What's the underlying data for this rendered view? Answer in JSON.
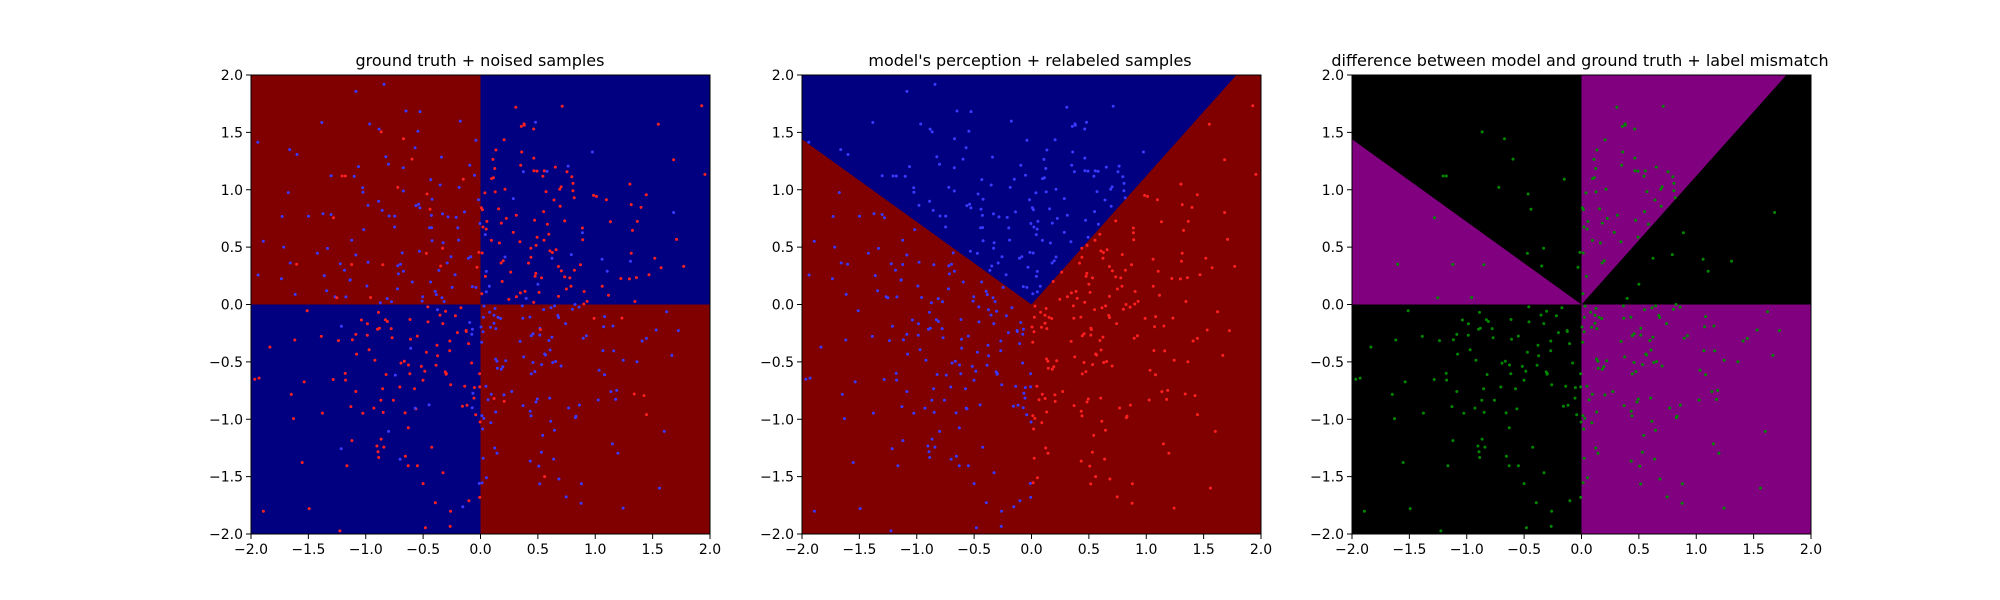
{
  "figure": {
    "background": "#ffffff"
  },
  "chart_data": [
    {
      "type": "scatter",
      "title": "ground truth + noised samples",
      "xlabel": "",
      "ylabel": "",
      "xlim": [
        -2.0,
        2.0
      ],
      "ylim": [
        -2.0,
        2.0
      ],
      "xticks": [
        "−2.0",
        "−1.5",
        "−1.0",
        "−0.5",
        "0.0",
        "0.5",
        "1.0",
        "1.5",
        "2.0"
      ],
      "yticks": [
        "−2.0",
        "−1.5",
        "−1.0",
        "−0.5",
        "0.0",
        "0.5",
        "1.0",
        "1.5",
        "2.0"
      ],
      "grid": false,
      "background_regions": [
        {
          "region": "x<0, y>0",
          "color": "#800000"
        },
        {
          "region": "x>0, y>0",
          "color": "#000080"
        },
        {
          "region": "x<0, y<0",
          "color": "#000080"
        },
        {
          "region": "x>0, y<0",
          "color": "#800000"
        }
      ],
      "point_colors": {
        "class_a": "#ff2020",
        "class_b": "#3a3aff"
      },
      "points_per_quadrant": 130,
      "spread": 0.65
    },
    {
      "type": "scatter",
      "title": "model's perception + relabeled samples",
      "xlabel": "",
      "ylabel": "",
      "xlim": [
        -2.0,
        2.0
      ],
      "ylim": [
        -2.0,
        2.0
      ],
      "xticks": [
        "−2.0",
        "−1.5",
        "−1.0",
        "−0.5",
        "0.0",
        "0.5",
        "1.0",
        "1.5",
        "2.0"
      ],
      "yticks": [
        "−2.0",
        "−1.5",
        "−1.0",
        "−0.5",
        "0.0",
        "0.5",
        "1.0",
        "1.5",
        "2.0"
      ],
      "grid": false,
      "decision_boundary": {
        "left_slope": -0.72,
        "right_slope": 1.12,
        "vertex": [
          0.0,
          0.0
        ]
      },
      "region_colors": {
        "upper_wedge": "#000080",
        "rest": "#800000"
      },
      "point_colors": {
        "class_a": "#ff2020",
        "class_b": "#3a3aff"
      }
    },
    {
      "type": "scatter",
      "title": "difference between model and ground truth + label mismatch",
      "xlabel": "",
      "ylabel": "",
      "xlim": [
        -2.0,
        2.0
      ],
      "ylim": [
        -2.0,
        2.0
      ],
      "xticks": [
        "−2.0",
        "−1.5",
        "−1.0",
        "−0.5",
        "0.0",
        "0.5",
        "1.0",
        "1.5",
        "2.0"
      ],
      "yticks": [
        "−2.0",
        "−1.5",
        "−1.0",
        "−0.5",
        "0.0",
        "0.5",
        "1.0",
        "1.5",
        "2.0"
      ],
      "grid": false,
      "region_colors": {
        "mismatch": "#800080",
        "match": "#000000"
      },
      "point_colors": {
        "mismatch_sample": "#008800"
      }
    }
  ]
}
